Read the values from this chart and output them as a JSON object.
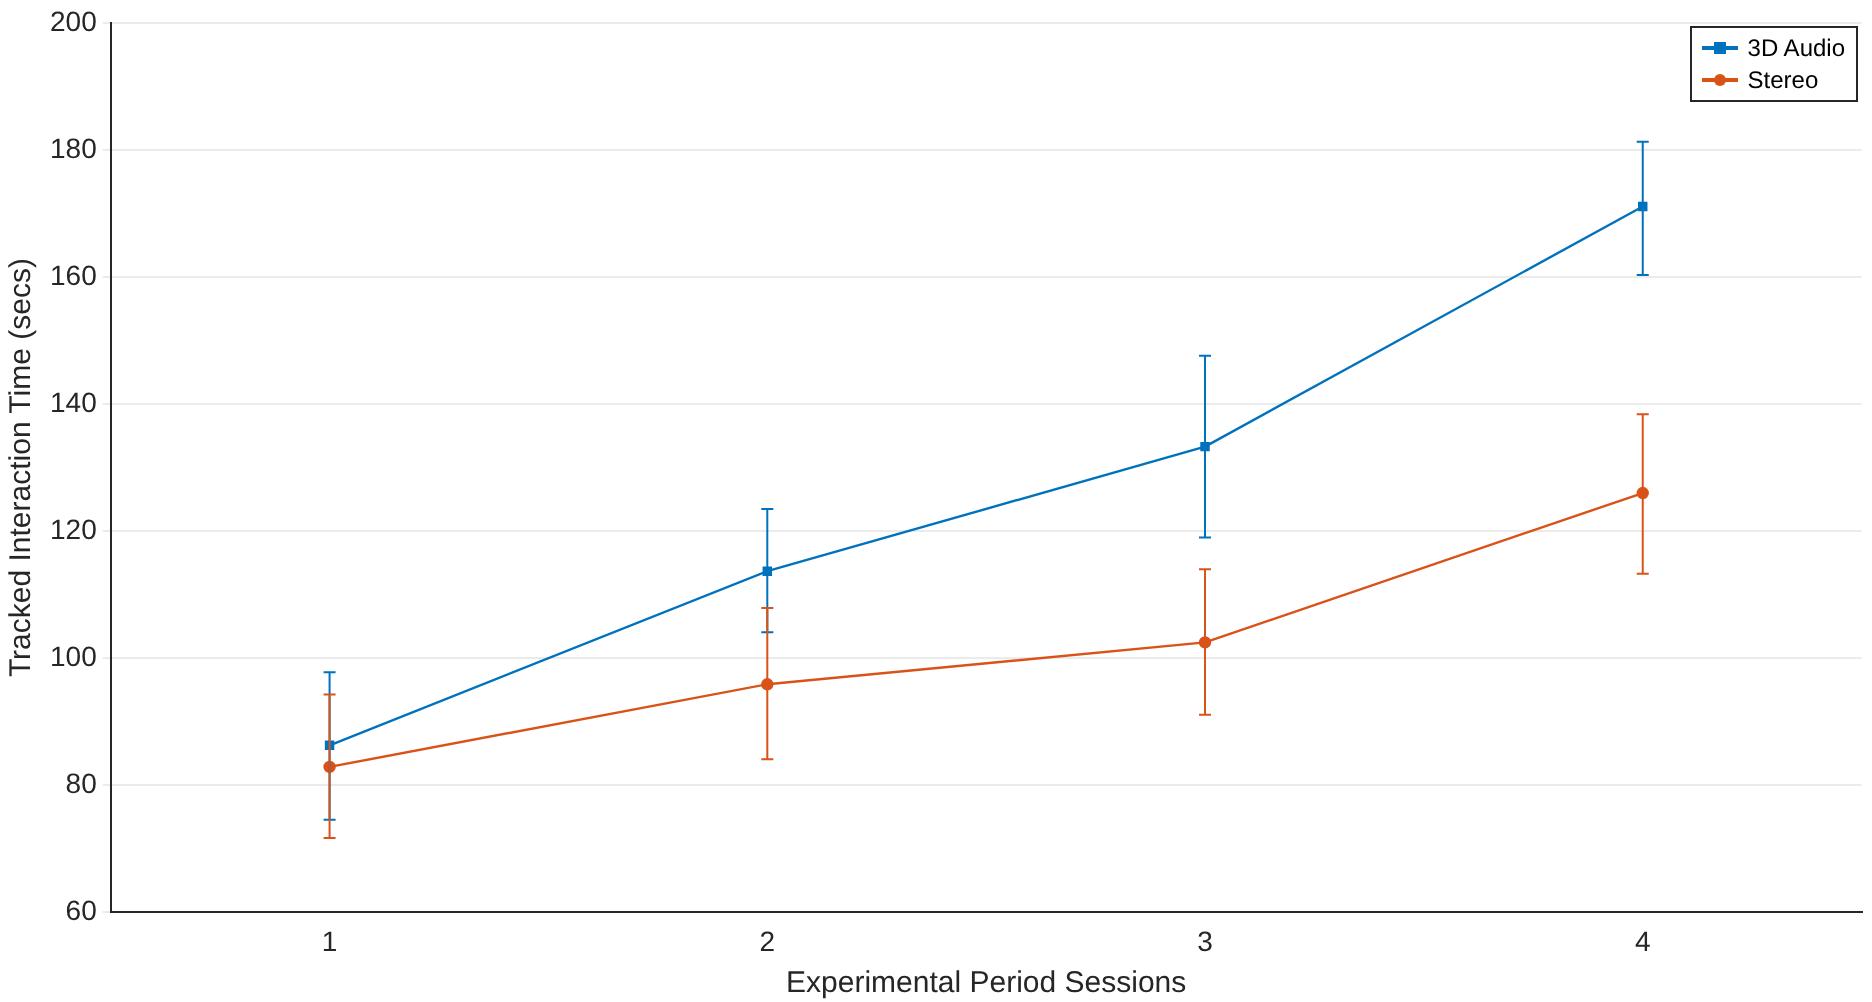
{
  "chart_data": {
    "type": "line",
    "xlabel": "Experimental Period Sessions",
    "ylabel": "Tracked Interaction Time (secs)",
    "x": [
      1,
      2,
      3,
      4
    ],
    "xlim": [
      0.5,
      4.5
    ],
    "xticks": [
      1,
      2,
      3,
      4
    ],
    "ylim": [
      60,
      200
    ],
    "yticks": [
      60,
      80,
      100,
      120,
      140,
      160,
      180,
      200
    ],
    "grid": "y",
    "legend": "top right",
    "line_style": "solid",
    "series": [
      {
        "name": "3D Audio",
        "color": "#0072bd",
        "marker": "square",
        "values": [
          86.3,
          113.7,
          133.3,
          171.1
        ],
        "errors": [
          [
            74.6,
            97.8
          ],
          [
            104.1,
            123.5
          ],
          [
            119,
            147.6
          ],
          [
            160.3,
            181.3
          ]
        ]
      },
      {
        "name": "Stereo",
        "color": "#d95319",
        "marker": "circle",
        "values": [
          82.9,
          95.9,
          102.5,
          126
        ],
        "errors": [
          [
            71.7,
            94.3
          ],
          [
            84.1,
            107.9
          ],
          [
            91.1,
            114
          ],
          [
            113.3,
            138.4
          ]
        ]
      }
    ]
  }
}
